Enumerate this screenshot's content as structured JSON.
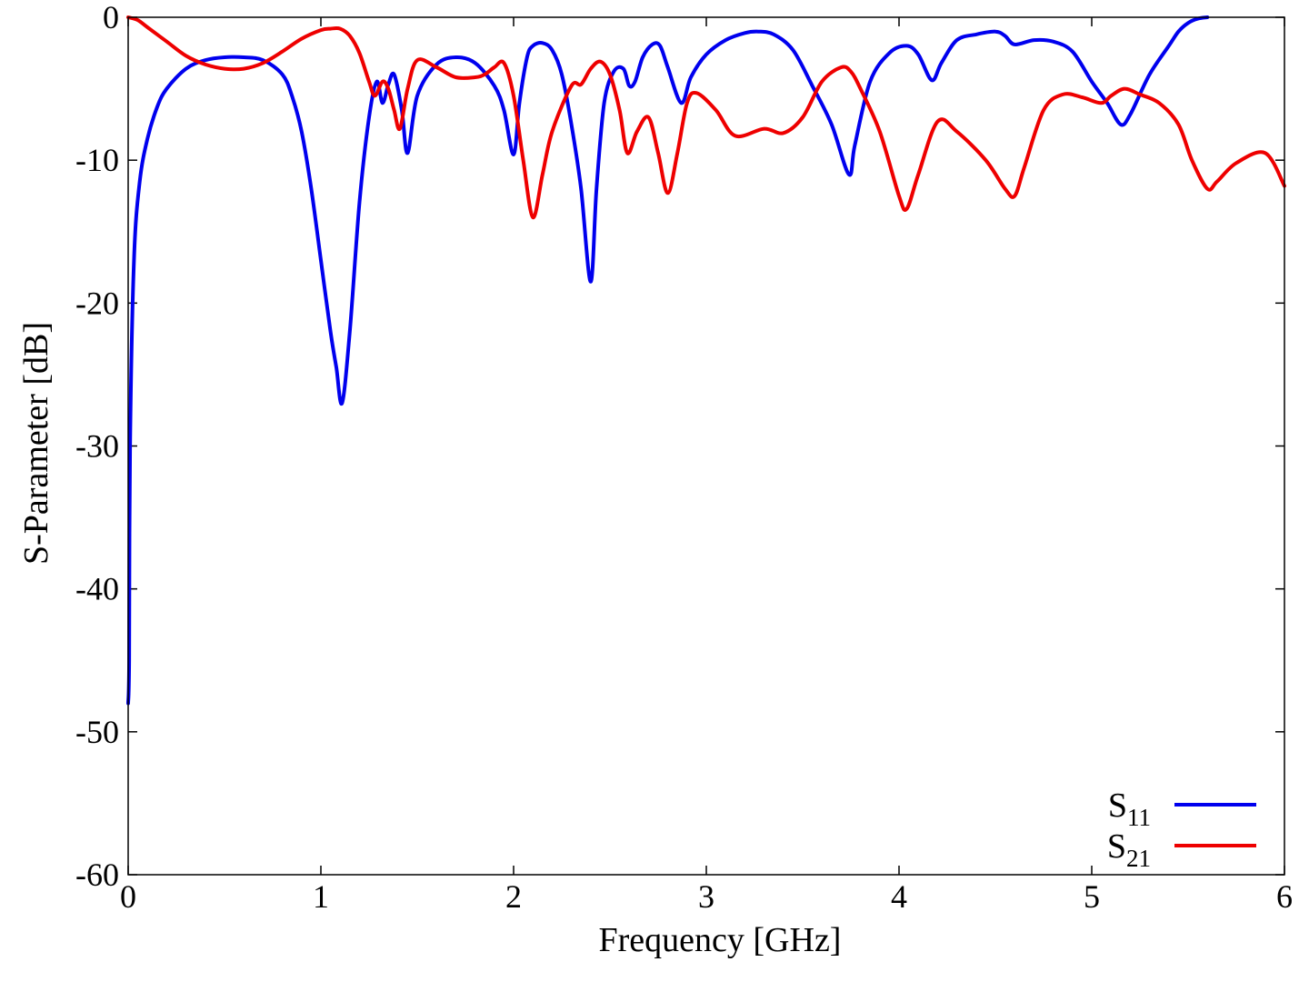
{
  "chart_data": {
    "type": "line",
    "title": "",
    "xlabel": "Frequency [GHz]",
    "ylabel": "S-Parameter [dB]",
    "xlim": [
      0,
      6
    ],
    "ylim": [
      -60,
      0
    ],
    "x_ticks": [
      0,
      1,
      2,
      3,
      4,
      5,
      6
    ],
    "y_ticks": [
      0,
      -10,
      -20,
      -30,
      -40,
      -50,
      -60
    ],
    "x_tick_labels": [
      "0",
      "1",
      "2",
      "3",
      "4",
      "5",
      "6"
    ],
    "y_tick_labels": [
      "0",
      "-10",
      "-20",
      "-30",
      "-40",
      "-50",
      "-60"
    ],
    "grid": false,
    "legend_position": "bottom-right",
    "series": [
      {
        "name": "S11",
        "label_main": "S",
        "label_sub": "11",
        "color": "#0000ee",
        "x": [
          0.0,
          0.005,
          0.01,
          0.03,
          0.06,
          0.1,
          0.15,
          0.2,
          0.3,
          0.4,
          0.5,
          0.6,
          0.7,
          0.8,
          0.85,
          0.9,
          0.95,
          1.0,
          1.05,
          1.08,
          1.11,
          1.15,
          1.2,
          1.25,
          1.29,
          1.32,
          1.35,
          1.38,
          1.42,
          1.45,
          1.5,
          1.6,
          1.7,
          1.8,
          1.9,
          1.95,
          2.0,
          2.03,
          2.07,
          2.1,
          2.15,
          2.2,
          2.25,
          2.3,
          2.35,
          2.4,
          2.43,
          2.47,
          2.52,
          2.57,
          2.6,
          2.63,
          2.67,
          2.72,
          2.76,
          2.8,
          2.87,
          2.92,
          3.0,
          3.1,
          3.2,
          3.27,
          3.35,
          3.45,
          3.55,
          3.65,
          3.74,
          3.77,
          3.85,
          3.95,
          4.04,
          4.1,
          4.17,
          4.22,
          4.3,
          4.4,
          4.5,
          4.55,
          4.6,
          4.7,
          4.8,
          4.9,
          5.0,
          5.08,
          5.15,
          5.2,
          5.3,
          5.4,
          5.45,
          5.5,
          5.55,
          5.6
        ],
        "y": [
          -48.0,
          -45.0,
          -30.0,
          -17.0,
          -11.5,
          -8.5,
          -6.3,
          -5.0,
          -3.6,
          -3.0,
          -2.8,
          -2.8,
          -3.0,
          -4.0,
          -5.5,
          -8.0,
          -12.0,
          -17.0,
          -22.0,
          -24.5,
          -27.0,
          -22.0,
          -13.0,
          -7.0,
          -4.5,
          -6.0,
          -4.7,
          -4.0,
          -6.5,
          -9.5,
          -5.5,
          -3.3,
          -2.8,
          -3.2,
          -4.8,
          -6.5,
          -9.6,
          -6.0,
          -2.8,
          -2.0,
          -1.8,
          -2.3,
          -4.0,
          -7.5,
          -12.0,
          -18.5,
          -12.0,
          -6.0,
          -3.8,
          -3.6,
          -4.8,
          -4.5,
          -2.8,
          -1.9,
          -2.0,
          -3.5,
          -6.0,
          -4.2,
          -2.6,
          -1.6,
          -1.1,
          -1.0,
          -1.2,
          -2.3,
          -4.8,
          -7.5,
          -11.0,
          -9.0,
          -4.5,
          -2.5,
          -2.0,
          -2.6,
          -4.4,
          -3.2,
          -1.6,
          -1.2,
          -1.0,
          -1.3,
          -1.9,
          -1.6,
          -1.7,
          -2.4,
          -4.5,
          -6.0,
          -7.5,
          -6.8,
          -4.0,
          -2.0,
          -1.0,
          -0.4,
          -0.1,
          0.0
        ]
      },
      {
        "name": "S21",
        "label_main": "S",
        "label_sub": "21",
        "color": "#ee0000",
        "x": [
          0.0,
          0.05,
          0.1,
          0.2,
          0.3,
          0.4,
          0.5,
          0.6,
          0.7,
          0.8,
          0.9,
          1.0,
          1.05,
          1.1,
          1.15,
          1.2,
          1.25,
          1.28,
          1.32,
          1.35,
          1.38,
          1.41,
          1.45,
          1.5,
          1.6,
          1.7,
          1.8,
          1.85,
          1.9,
          1.95,
          2.0,
          2.05,
          2.1,
          2.15,
          2.2,
          2.3,
          2.35,
          2.4,
          2.45,
          2.5,
          2.55,
          2.59,
          2.64,
          2.7,
          2.75,
          2.8,
          2.85,
          2.9,
          2.95,
          3.05,
          3.15,
          3.3,
          3.4,
          3.5,
          3.6,
          3.7,
          3.75,
          3.8,
          3.9,
          4.0,
          4.04,
          4.1,
          4.2,
          4.3,
          4.45,
          4.55,
          4.6,
          4.65,
          4.75,
          4.85,
          4.95,
          5.05,
          5.1,
          5.17,
          5.25,
          5.35,
          5.45,
          5.52,
          5.6,
          5.65,
          5.75,
          5.9,
          6.0
        ],
        "y": [
          0.0,
          -0.2,
          -0.7,
          -1.7,
          -2.7,
          -3.3,
          -3.6,
          -3.6,
          -3.2,
          -2.4,
          -1.5,
          -0.9,
          -0.8,
          -0.8,
          -1.3,
          -2.5,
          -4.5,
          -5.5,
          -4.5,
          -5.0,
          -6.5,
          -7.8,
          -5.0,
          -3.0,
          -3.5,
          -4.2,
          -4.2,
          -4.0,
          -3.5,
          -3.2,
          -5.5,
          -10.0,
          -14.0,
          -11.0,
          -8.0,
          -4.8,
          -4.7,
          -3.6,
          -3.1,
          -4.0,
          -6.5,
          -9.5,
          -8.0,
          -7.0,
          -9.5,
          -12.3,
          -9.5,
          -6.0,
          -5.3,
          -6.5,
          -8.3,
          -7.8,
          -8.1,
          -7.0,
          -4.5,
          -3.5,
          -3.8,
          -5.0,
          -8.0,
          -12.5,
          -13.4,
          -11.0,
          -7.3,
          -8.0,
          -10.0,
          -12.0,
          -12.5,
          -10.5,
          -6.5,
          -5.4,
          -5.6,
          -6.0,
          -5.5,
          -5.0,
          -5.4,
          -6.0,
          -7.5,
          -10.0,
          -12.0,
          -11.5,
          -10.2,
          -9.5,
          -11.8
        ]
      }
    ]
  }
}
